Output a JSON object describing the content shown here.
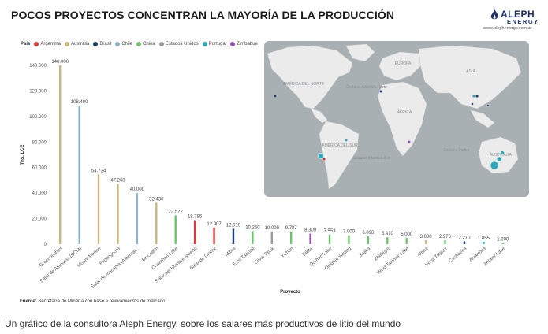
{
  "header": {
    "title": "POCOS PROYECTOS CONCENTRAN LA MAYORÍA DE LA PRODUCCIÓN"
  },
  "logo": {
    "name_line1": "ALEPH",
    "name_line2": "ENERGY",
    "url": "www.alephenergy.com.ar"
  },
  "legend": {
    "title": "País",
    "items": [
      {
        "label": "Argentina",
        "color": "#d93b3b"
      },
      {
        "label": "Australia",
        "color": "#c9b67a"
      },
      {
        "label": "Brasil",
        "color": "#1f3f6e"
      },
      {
        "label": "Chile",
        "color": "#8fb3c9"
      },
      {
        "label": "China",
        "color": "#6dc26d"
      },
      {
        "label": "Estados Unidos",
        "color": "#9a9a9a"
      },
      {
        "label": "Portugal",
        "color": "#2aa7b8"
      },
      {
        "label": "Zimbabue",
        "color": "#9b4fb8"
      }
    ]
  },
  "chart_data": {
    "type": "bar",
    "title": "",
    "xlabel": "Proyecto",
    "ylabel": "Tns. LCE",
    "ylim": [
      0,
      140000
    ],
    "yticks": [
      0,
      20000,
      40000,
      60000,
      80000,
      100000,
      120000,
      140000
    ],
    "ytick_labels": [
      "0",
      "20.000",
      "40.000",
      "60.000",
      "80.000",
      "100.000",
      "120.000",
      "140.000"
    ],
    "grid": false,
    "legend_position": "top-left",
    "categories": [
      "Greenbushes",
      "Salar de Atacama (SQM)",
      "Mount Marion",
      "Pilgangoora",
      "Salar de Atacama (Albemar...",
      "Mt Cattlin",
      "Chaerhan Lake",
      "Salar del Hombre Muerto",
      "Salar de Olaroz",
      "Mibra",
      "East Taijinair",
      "Silver Peak",
      "Yichun",
      "Bikita",
      "Qarhan Lake",
      "Qinghai Yiliping",
      "Jiajika",
      "Zhabuye",
      "West Taijinair Lake",
      "Altura",
      "West Taijnair",
      "Cachoeira",
      "Alvarrões",
      "Jintaier Lake"
    ],
    "values": [
      140000,
      108400,
      54734,
      47268,
      40000,
      32430,
      22572,
      18785,
      12907,
      12019,
      10250,
      10000,
      9787,
      8309,
      7553,
      7000,
      6098,
      5410,
      5000,
      3000,
      2976,
      2210,
      1855,
      1000
    ],
    "value_labels": [
      "140.000",
      "108.400",
      "54.734",
      "47.268",
      "40.000",
      "32.430",
      "22.572",
      "18.785",
      "12.907",
      "12.019",
      "10.250",
      "10.000",
      "9.787",
      "8.309",
      "7.553",
      "7.000",
      "6.098",
      "5.410",
      "5.000",
      "3.000",
      "2.976",
      "2.210",
      "1.855",
      "1.000"
    ],
    "countries": [
      "Australia",
      "Chile",
      "Australia",
      "Australia",
      "Chile",
      "Australia",
      "China",
      "Argentina",
      "Argentina",
      "Brasil",
      "China",
      "Estados Unidos",
      "China",
      "Zimbabue",
      "China",
      "China",
      "China",
      "China",
      "China",
      "Australia",
      "China",
      "Brasil",
      "Portugal",
      "China"
    ]
  },
  "map": {
    "labels": [
      {
        "text": "AMÉRICA DEL NORTE"
      },
      {
        "text": "Océano Atlántico Norte"
      },
      {
        "text": "EUROPA"
      },
      {
        "text": "ASIA"
      },
      {
        "text": "ÁFRICA"
      },
      {
        "text": "AMÉRICA DEL SUR"
      },
      {
        "text": "Océano Atlántico Sur"
      },
      {
        "text": "Océano Índico"
      },
      {
        "text": "AUSTRALIA"
      }
    ]
  },
  "source": {
    "label": "Fuente:",
    "text": "Secretaría de Minería con base a relevamientos de mercado."
  },
  "caption": "Un gráfico de la consultora Aleph Energy, sobre los salares más productivos de litio del mundo"
}
